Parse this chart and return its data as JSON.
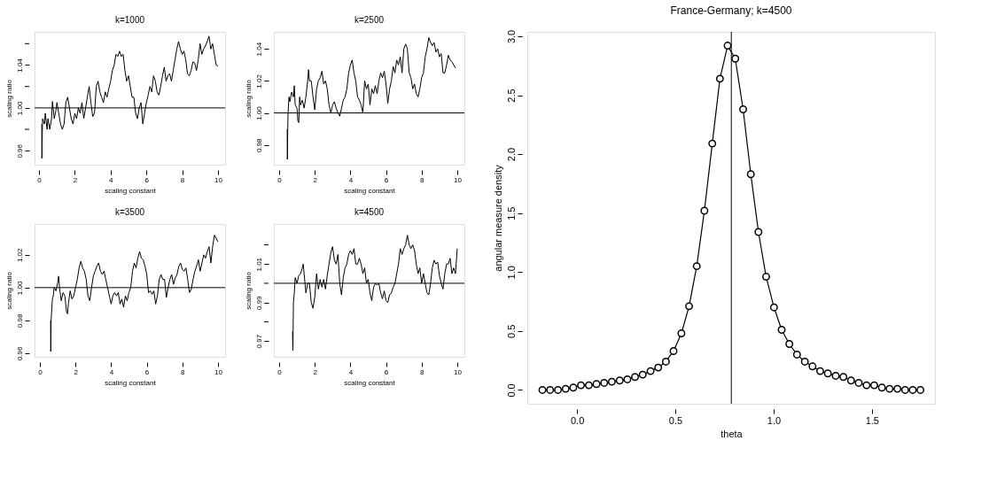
{
  "chart_data": [
    {
      "type": "line",
      "title": "k=1000",
      "xlabel": "scaling constant",
      "ylabel": "scaling ratio",
      "grid": false,
      "marker": "none",
      "xlim": [
        -0.25,
        10.4
      ],
      "ylim": [
        0.947,
        1.071
      ],
      "xticks": [
        0,
        2,
        4,
        6,
        8,
        10
      ],
      "yticks": [
        {
          "value": 0.96,
          "label": "0.96"
        },
        {
          "value": 0.98,
          "label": null
        },
        {
          "value": 1.0,
          "label": "1.00"
        },
        {
          "value": 1.02,
          "label": null
        },
        {
          "value": 1.04,
          "label": "1.04"
        },
        {
          "value": 1.06,
          "label": null
        }
      ],
      "ref_lines": [
        {
          "axis": "y",
          "value": 1.0,
          "color": "#000000"
        }
      ],
      "series": [
        {
          "color": "#000000",
          "x": [
            0.15,
            0.16,
            0.18,
            0.2,
            0.3,
            0.35,
            0.45,
            0.5,
            0.6,
            0.7,
            0.75,
            0.85,
            0.95,
            1.0,
            1.1,
            1.2,
            1.3,
            1.4,
            1.5,
            1.6,
            1.7,
            1.8,
            1.9,
            2.0,
            2.1,
            2.2,
            2.3,
            2.4,
            2.5,
            2.6,
            2.7,
            2.8,
            2.9,
            3.0,
            3.1,
            3.2,
            3.3,
            3.4,
            3.5,
            3.6,
            3.7,
            3.8,
            3.9,
            4.0,
            4.1,
            4.2,
            4.3,
            4.4,
            4.5,
            4.6,
            4.7,
            4.8,
            4.9,
            5.0,
            5.1,
            5.2,
            5.3,
            5.4,
            5.5,
            5.6,
            5.7,
            5.8,
            5.9,
            6.0,
            6.1,
            6.2,
            6.3,
            6.4,
            6.5,
            6.6,
            6.7,
            6.8,
            6.9,
            7.0,
            7.1,
            7.2,
            7.3,
            7.4,
            7.5,
            7.6,
            7.7,
            7.8,
            7.9,
            8.0,
            8.1,
            8.2,
            8.3,
            8.4,
            8.5,
            8.6,
            8.7,
            8.8,
            8.9,
            9.0,
            9.1,
            9.2,
            9.3,
            9.4,
            9.5,
            9.6,
            9.7,
            9.8,
            9.9,
            10.0
          ],
          "values": [
            0.985,
            0.953,
            0.975,
            0.99,
            0.985,
            0.995,
            0.98,
            0.99,
            0.98,
            0.99,
            1.006,
            0.99,
            0.998,
            1.005,
            0.995,
            0.985,
            0.98,
            0.985,
            1.005,
            1.01,
            1.0,
            0.99,
            0.985,
            0.995,
            0.99,
            1.0,
            0.995,
            1.005,
            0.99,
            1.0,
            1.01,
            1.02,
            1.005,
            0.992,
            0.995,
            1.02,
            1.025,
            1.015,
            1.01,
            1.005,
            1.015,
            1.01,
            1.018,
            1.025,
            1.035,
            1.04,
            1.05,
            1.048,
            1.053,
            1.048,
            1.05,
            1.035,
            1.025,
            1.03,
            1.02,
            1.01,
            1.01,
            0.995,
            0.99,
            1.0,
            1.005,
            0.985,
            0.995,
            1.005,
            1.012,
            1.02,
            1.015,
            1.03,
            1.025,
            1.015,
            1.012,
            1.02,
            1.03,
            1.038,
            1.025,
            1.03,
            1.032,
            1.025,
            1.035,
            1.045,
            1.055,
            1.062,
            1.055,
            1.05,
            1.053,
            1.045,
            1.032,
            1.03,
            1.035,
            1.043,
            1.042,
            1.035,
            1.045,
            1.06,
            1.05,
            1.055,
            1.058,
            1.062,
            1.067,
            1.055,
            1.06,
            1.05,
            1.04,
            1.039
          ]
        }
      ]
    },
    {
      "type": "line",
      "title": "k=2500",
      "xlabel": "scaling constant",
      "ylabel": "scaling ratio",
      "grid": false,
      "marker": "none",
      "xlim": [
        -0.3,
        10.4
      ],
      "ylim": [
        0.9677,
        1.0506
      ],
      "xticks": [
        0,
        2,
        4,
        6,
        8,
        10
      ],
      "yticks": [
        {
          "value": 0.98,
          "label": "0.98"
        },
        {
          "value": 1.0,
          "label": "1.00"
        },
        {
          "value": 1.02,
          "label": "1.02"
        },
        {
          "value": 1.04,
          "label": "1.04"
        }
      ],
      "ref_lines": [
        {
          "axis": "y",
          "value": 1.0,
          "color": "#000000"
        }
      ],
      "series": [
        {
          "color": "#000000",
          "x": [
            0.45,
            0.46,
            0.48,
            0.5,
            0.55,
            0.6,
            0.7,
            0.8,
            0.85,
            0.9,
            1.0,
            1.05,
            1.1,
            1.15,
            1.2,
            1.3,
            1.4,
            1.5,
            1.6,
            1.65,
            1.7,
            1.8,
            1.9,
            2.0,
            2.1,
            2.2,
            2.3,
            2.4,
            2.5,
            2.6,
            2.7,
            2.8,
            2.9,
            3.0,
            3.1,
            3.2,
            3.3,
            3.4,
            3.5,
            3.6,
            3.7,
            3.8,
            3.9,
            4.0,
            4.1,
            4.2,
            4.3,
            4.4,
            4.5,
            4.6,
            4.7,
            4.8,
            4.9,
            5.0,
            5.1,
            5.2,
            5.3,
            5.4,
            5.5,
            5.6,
            5.7,
            5.8,
            5.9,
            6.0,
            6.1,
            6.2,
            6.3,
            6.4,
            6.5,
            6.6,
            6.7,
            6.8,
            6.9,
            7.0,
            7.1,
            7.2,
            7.3,
            7.4,
            7.5,
            7.6,
            7.7,
            7.8,
            7.9,
            8.0,
            8.1,
            8.2,
            8.3,
            8.4,
            8.5,
            8.6,
            8.7,
            8.8,
            8.9,
            9.0,
            9.1,
            9.2,
            9.3,
            9.4,
            9.5,
            9.6,
            9.7,
            9.8,
            9.9
          ],
          "values": [
            0.99,
            0.971,
            0.99,
            1.0,
            1.01,
            1.007,
            1.013,
            1.01,
            1.017,
            1.005,
            1.003,
            0.995,
            0.994,
            1.01,
            1.005,
            1.008,
            1.003,
            1.01,
            1.02,
            1.027,
            1.02,
            1.02,
            1.01,
            1.002,
            1.015,
            1.02,
            1.022,
            1.026,
            1.018,
            1.02,
            1.015,
            1.005,
            1.0,
            1.005,
            1.007,
            1.003,
            1.0,
            0.998,
            1.003,
            1.008,
            1.01,
            1.015,
            1.025,
            1.03,
            1.033,
            1.025,
            1.02,
            1.01,
            1.008,
            1.005,
            1.0,
            1.02,
            1.015,
            1.018,
            1.005,
            1.015,
            1.012,
            1.017,
            1.012,
            1.02,
            1.025,
            1.022,
            1.026,
            1.018,
            1.006,
            1.015,
            1.02,
            1.029,
            1.025,
            1.033,
            1.03,
            1.035,
            1.025,
            1.04,
            1.043,
            1.04,
            1.025,
            1.022,
            1.015,
            1.018,
            1.012,
            1.01,
            1.015,
            1.022,
            1.025,
            1.035,
            1.04,
            1.047,
            1.044,
            1.042,
            1.044,
            1.038,
            1.04,
            1.035,
            1.037,
            1.025,
            1.025,
            1.03,
            1.036,
            1.033,
            1.032,
            1.03,
            1.028
          ]
        }
      ]
    },
    {
      "type": "line",
      "title": "k=3500",
      "xlabel": "scaling constant",
      "ylabel": "scaling ratio",
      "grid": false,
      "marker": "none",
      "xlim": [
        -0.3,
        10.4
      ],
      "ylim": [
        0.9578,
        1.0388
      ],
      "xticks": [
        0,
        2,
        4,
        6,
        8,
        10
      ],
      "yticks": [
        {
          "value": 0.96,
          "label": "0.96"
        },
        {
          "value": 0.98,
          "label": "0.98"
        },
        {
          "value": 1.0,
          "label": "1.00"
        },
        {
          "value": 1.02,
          "label": "1.02"
        }
      ],
      "ref_lines": [
        {
          "axis": "y",
          "value": 1.0,
          "color": "#000000"
        }
      ],
      "series": [
        {
          "color": "#000000",
          "x": [
            0.6,
            0.61,
            0.63,
            0.7,
            0.75,
            0.8,
            0.9,
            1.0,
            1.05,
            1.1,
            1.2,
            1.3,
            1.4,
            1.5,
            1.55,
            1.6,
            1.7,
            1.8,
            1.9,
            2.0,
            2.1,
            2.2,
            2.3,
            2.4,
            2.5,
            2.6,
            2.7,
            2.8,
            2.9,
            3.0,
            3.1,
            3.2,
            3.3,
            3.4,
            3.5,
            3.6,
            3.7,
            3.8,
            3.9,
            4.0,
            4.1,
            4.2,
            4.3,
            4.4,
            4.5,
            4.6,
            4.7,
            4.8,
            4.9,
            5.0,
            5.1,
            5.2,
            5.3,
            5.4,
            5.5,
            5.6,
            5.7,
            5.8,
            5.9,
            6.0,
            6.1,
            6.2,
            6.3,
            6.4,
            6.5,
            6.6,
            6.7,
            6.8,
            6.9,
            7.0,
            7.1,
            7.2,
            7.3,
            7.4,
            7.5,
            7.6,
            7.7,
            7.8,
            7.9,
            8.0,
            8.1,
            8.2,
            8.3,
            8.4,
            8.5,
            8.6,
            8.7,
            8.8,
            8.9,
            9.0,
            9.1,
            9.2,
            9.3,
            9.4,
            9.5,
            9.6,
            9.7,
            9.8,
            9.9,
            10.0
          ],
          "values": [
            0.98,
            0.961,
            0.98,
            0.993,
            0.995,
            1.0,
            0.998,
            1.003,
            1.007,
            1.0,
            0.992,
            0.997,
            0.995,
            0.985,
            0.984,
            0.99,
            0.998,
            0.993,
            0.995,
            1.0,
            1.005,
            1.012,
            1.016,
            1.012,
            1.01,
            1.005,
            0.995,
            0.992,
            1.0,
            1.007,
            1.01,
            1.013,
            1.015,
            1.01,
            1.008,
            1.01,
            1.005,
            1.0,
            0.995,
            0.99,
            0.995,
            0.997,
            0.995,
            0.997,
            0.99,
            0.993,
            0.988,
            0.995,
            0.992,
            0.997,
            1.0,
            1.01,
            1.015,
            1.012,
            1.018,
            1.022,
            1.018,
            1.017,
            1.013,
            1.008,
            0.997,
            0.998,
            0.996,
            0.998,
            0.99,
            0.995,
            1.005,
            1.008,
            1.005,
            1.005,
            0.994,
            1.0,
            1.005,
            1.008,
            1.002,
            1.006,
            1.008,
            1.013,
            1.015,
            1.011,
            1.01,
            1.012,
            1.005,
            0.997,
            0.999,
            1.005,
            1.01,
            1.013,
            1.017,
            1.01,
            1.015,
            1.02,
            1.018,
            1.022,
            1.025,
            1.015,
            1.025,
            1.032,
            1.03,
            1.028
          ]
        }
      ]
    },
    {
      "type": "line",
      "title": "k=4500",
      "xlabel": "scaling constant",
      "ylabel": "scaling ratio",
      "grid": false,
      "marker": "none",
      "xlim": [
        -0.3,
        10.4
      ],
      "ylim": [
        0.9618,
        1.0308
      ],
      "xticks": [
        0,
        2,
        4,
        6,
        8,
        10
      ],
      "yticks": [
        {
          "value": 0.97,
          "label": "0.97"
        },
        {
          "value": 0.98,
          "label": null
        },
        {
          "value": 0.99,
          "label": "0.99"
        },
        {
          "value": 1.0,
          "label": null
        },
        {
          "value": 1.01,
          "label": "1.01"
        },
        {
          "value": 1.02,
          "label": null
        }
      ],
      "ref_lines": [
        {
          "axis": "y",
          "value": 1.0,
          "color": "#000000"
        }
      ],
      "series": [
        {
          "color": "#000000",
          "x": [
            0.75,
            0.77,
            0.8,
            0.85,
            0.9,
            1.0,
            1.1,
            1.2,
            1.3,
            1.35,
            1.4,
            1.5,
            1.6,
            1.7,
            1.8,
            1.9,
            2.0,
            2.1,
            2.2,
            2.3,
            2.4,
            2.5,
            2.6,
            2.7,
            2.8,
            2.9,
            3.0,
            3.1,
            3.2,
            3.3,
            3.4,
            3.5,
            3.6,
            3.7,
            3.8,
            3.9,
            4.0,
            4.1,
            4.2,
            4.3,
            4.4,
            4.5,
            4.6,
            4.7,
            4.8,
            4.9,
            5.0,
            5.1,
            5.2,
            5.3,
            5.4,
            5.5,
            5.6,
            5.7,
            5.8,
            5.9,
            6.0,
            6.1,
            6.2,
            6.3,
            6.4,
            6.5,
            6.6,
            6.7,
            6.8,
            6.9,
            7.0,
            7.1,
            7.2,
            7.3,
            7.4,
            7.5,
            7.6,
            7.7,
            7.8,
            7.9,
            8.0,
            8.1,
            8.2,
            8.3,
            8.4,
            8.5,
            8.6,
            8.7,
            8.8,
            8.9,
            9.0,
            9.1,
            9.2,
            9.3,
            9.4,
            9.5,
            9.6,
            9.7,
            9.8,
            9.9,
            10.0
          ],
          "values": [
            0.975,
            0.965,
            0.99,
            0.995,
            1.003,
            1.0,
            1.004,
            1.005,
            1.008,
            1.01,
            1.005,
            0.995,
            1.0,
            1.0,
            0.99,
            0.987,
            0.993,
            1.005,
            0.997,
            1.002,
            0.998,
            1.002,
            0.997,
            1.004,
            1.01,
            1.016,
            1.019,
            1.012,
            1.01,
            1.015,
            1.0,
            0.994,
            1.003,
            1.008,
            1.01,
            1.015,
            1.017,
            1.015,
            1.018,
            1.01,
            1.01,
            1.013,
            1.01,
            1.005,
            1.008,
            1.0,
            1.002,
            0.995,
            0.991,
            0.998,
            1.0,
            0.999,
            1.0,
            0.995,
            0.992,
            0.996,
            0.991,
            0.99,
            0.994,
            0.995,
            0.998,
            1.0,
            1.005,
            1.01,
            1.018,
            1.015,
            1.018,
            1.02,
            1.025,
            1.02,
            1.018,
            1.02,
            1.017,
            1.01,
            1.005,
            1.008,
            1.0,
            1.005,
            1.0,
            0.995,
            0.994,
            1.0,
            1.008,
            1.012,
            1.01,
            1.011,
            1.004,
            1.0,
            0.997,
            1.005,
            1.01,
            1.01,
            1.013,
            1.005,
            1.008,
            1.005,
            1.018
          ]
        }
      ]
    },
    {
      "type": "line",
      "title": "France-Germany; k=4500",
      "xlabel": "theta",
      "ylabel": "angular measure density",
      "grid": false,
      "marker": "circle",
      "xlim": [
        -0.253,
        1.821
      ],
      "ylim": [
        -0.117,
        3.037
      ],
      "xticks": [
        {
          "value": 0.0,
          "label": "0.0"
        },
        0.5,
        {
          "value": 1.0,
          "label": "1.0"
        },
        1.5
      ],
      "yticks": [
        {
          "value": 0.0,
          "label": "0.0"
        },
        0.5,
        {
          "value": 1.0,
          "label": "1.0"
        },
        1.5,
        {
          "value": 2.0,
          "label": "2.0"
        },
        2.5,
        {
          "value": 3.0,
          "label": "3.0"
        }
      ],
      "ref_lines": [
        {
          "axis": "x",
          "value": 0.785,
          "color": "#000000"
        }
      ],
      "series": [
        {
          "color": "#000000",
          "x": [
            -0.176,
            -0.137,
            -0.097,
            -0.058,
            -0.019,
            0.02,
            0.06,
            0.099,
            0.138,
            0.177,
            0.217,
            0.256,
            0.295,
            0.334,
            0.374,
            0.413,
            0.452,
            0.491,
            0.531,
            0.57,
            0.609,
            0.648,
            0.688,
            0.727,
            0.766,
            0.805,
            0.845,
            0.884,
            0.923,
            0.962,
            1.002,
            1.041,
            1.08,
            1.119,
            1.159,
            1.198,
            1.237,
            1.276,
            1.316,
            1.355,
            1.394,
            1.433,
            1.473,
            1.512,
            1.551,
            1.59,
            1.63,
            1.669,
            1.708,
            1.747
          ],
          "values": [
            0,
            0,
            0,
            0.01,
            0.02,
            0.04,
            0.04,
            0.05,
            0.06,
            0.07,
            0.08,
            0.09,
            0.11,
            0.13,
            0.16,
            0.19,
            0.24,
            0.33,
            0.48,
            0.71,
            1.05,
            1.52,
            2.09,
            2.64,
            2.92,
            2.81,
            2.38,
            1.83,
            1.34,
            0.96,
            0.7,
            0.51,
            0.39,
            0.3,
            0.24,
            0.2,
            0.16,
            0.14,
            0.12,
            0.11,
            0.08,
            0.06,
            0.04,
            0.04,
            0.02,
            0.01,
            0.01,
            0,
            0,
            0
          ]
        }
      ]
    }
  ]
}
